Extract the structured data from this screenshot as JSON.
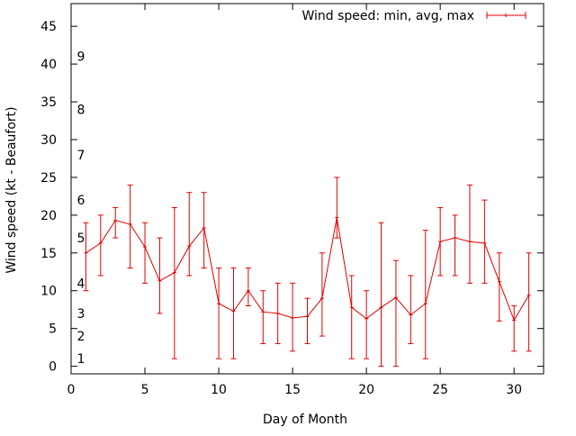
{
  "chart_data": {
    "type": "line",
    "xlabel": "Day of Month",
    "ylabel": "Wind speed (kt - Beaufort)",
    "xlim": [
      0,
      32
    ],
    "ylim": [
      -1,
      48
    ],
    "xticks": [
      0,
      5,
      10,
      15,
      20,
      25,
      30
    ],
    "yticks": [
      0,
      5,
      10,
      15,
      20,
      25,
      30,
      35,
      40,
      45
    ],
    "grid": false,
    "legend_position": "top-right",
    "color": "#e00000",
    "beaufort_labels": [
      {
        "label": "1",
        "value": 1
      },
      {
        "label": "2",
        "value": 4
      },
      {
        "label": "3",
        "value": 7
      },
      {
        "label": "4",
        "value": 11
      },
      {
        "label": "5",
        "value": 17
      },
      {
        "label": "6",
        "value": 22
      },
      {
        "label": "7",
        "value": 28
      },
      {
        "label": "8",
        "value": 34
      },
      {
        "label": "9",
        "value": 41
      }
    ],
    "series": [
      {
        "name": "Wind speed: min, avg, max",
        "x": [
          1,
          2,
          3,
          4,
          5,
          6,
          7,
          8,
          9,
          10,
          11,
          12,
          13,
          14,
          15,
          16,
          17,
          18,
          19,
          20,
          21,
          22,
          23,
          24,
          25,
          26,
          27,
          28,
          29,
          30,
          31
        ],
        "avg": [
          15.0,
          16.3,
          19.3,
          18.8,
          15.8,
          11.3,
          12.4,
          15.9,
          18.3,
          8.3,
          7.3,
          10.0,
          7.2,
          7.0,
          6.4,
          6.6,
          9.0,
          19.7,
          7.8,
          6.3,
          7.8,
          9.1,
          6.8,
          8.3,
          16.5,
          17.0,
          16.5,
          16.3,
          11.2,
          6.1,
          9.4
        ],
        "min": [
          10,
          12,
          17,
          13,
          11,
          7,
          1,
          12,
          13,
          1,
          1,
          8,
          3,
          3,
          2,
          3,
          4,
          17,
          1,
          1,
          0,
          0,
          3,
          1,
          12,
          12,
          11,
          11,
          6,
          2,
          2
        ],
        "max": [
          19,
          20,
          21,
          24,
          19,
          17,
          21,
          23,
          23,
          13,
          13,
          13,
          10,
          11,
          11,
          9,
          15,
          25,
          12,
          10,
          19,
          14,
          12,
          18,
          21,
          20,
          24,
          22,
          15,
          8,
          15
        ]
      }
    ]
  }
}
